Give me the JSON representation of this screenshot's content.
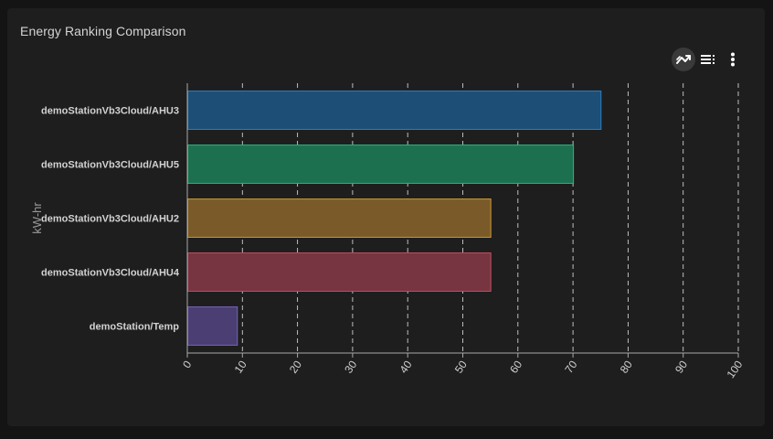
{
  "card": {
    "title": "Energy Ranking Comparison"
  },
  "toolbar": {
    "buttons": [
      {
        "name": "trend-chart-icon",
        "active": true
      },
      {
        "name": "legend-list-icon",
        "active": false
      },
      {
        "name": "more-vertical-icon",
        "active": false
      }
    ]
  },
  "chart_data": {
    "type": "bar",
    "orientation": "horizontal",
    "categories": [
      "demoStationVb3Cloud/AHU3",
      "demoStationVb3Cloud/AHU5",
      "demoStationVb3Cloud/AHU2",
      "demoStationVb3Cloud/AHU4",
      "demoStation/Temp"
    ],
    "values": [
      75,
      70,
      55,
      55,
      9
    ],
    "colors": [
      {
        "fill": "#1d4e75",
        "stroke": "#2e7fc0"
      },
      {
        "fill": "#1c7050",
        "stroke": "#2fb37c"
      },
      {
        "fill": "#7a5a28",
        "stroke": "#c99a33"
      },
      {
        "fill": "#763540",
        "stroke": "#c2505f"
      },
      {
        "fill": "#4a3e72",
        "stroke": "#7a63b8"
      }
    ],
    "title": "",
    "ylabel": "kW-hr",
    "xlabel": "",
    "xlim": [
      0,
      100
    ],
    "xticks": [
      0,
      10,
      20,
      30,
      40,
      50,
      60,
      70,
      80,
      90,
      100
    ],
    "grid": "vertical dashed"
  }
}
